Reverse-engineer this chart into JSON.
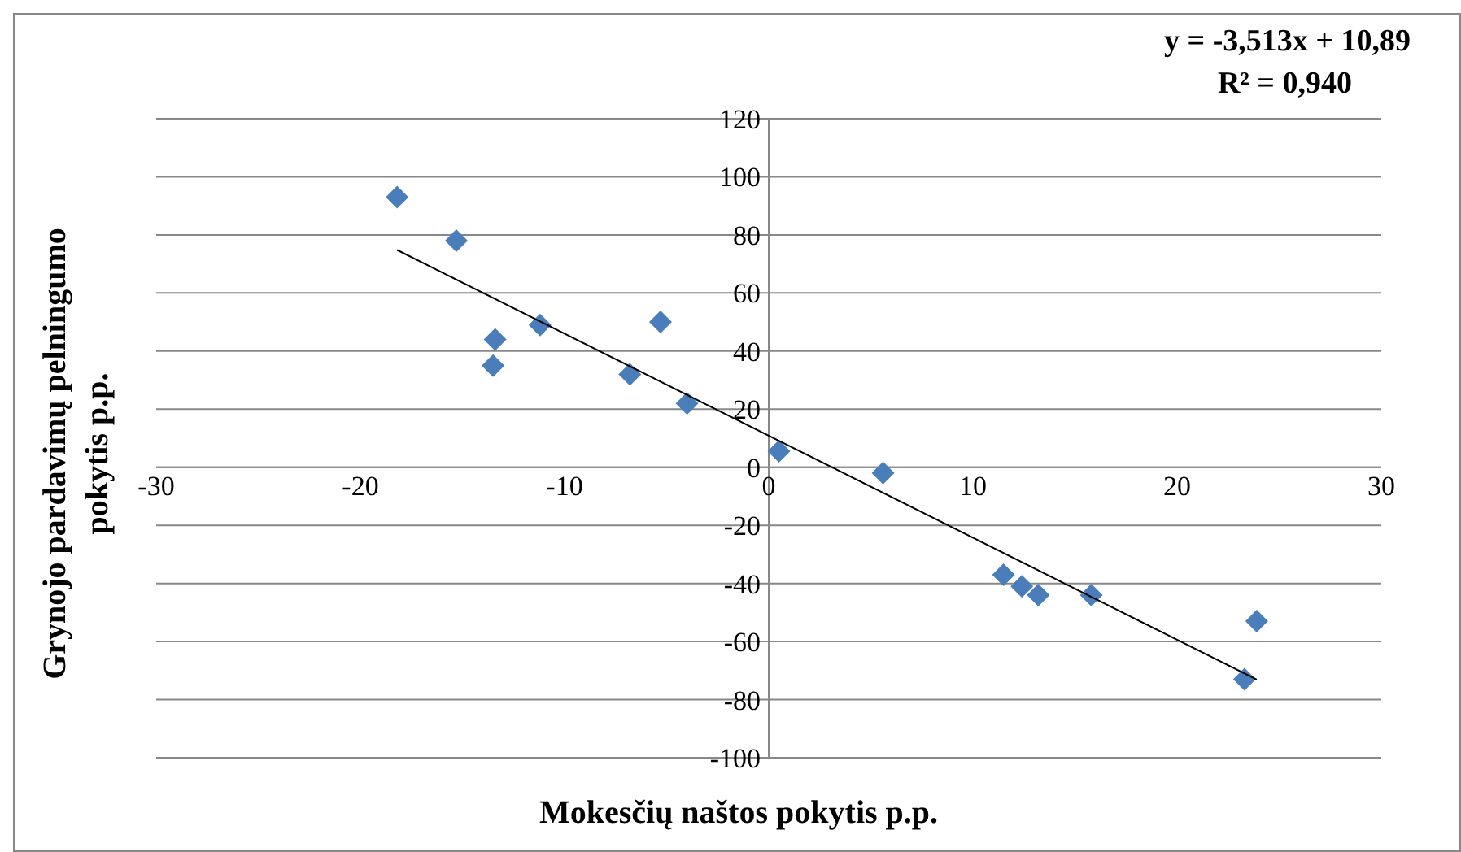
{
  "chart_data": {
    "type": "scatter",
    "xlabel": "Mokesčių naštos pokytis p.p.",
    "ylabel": "Grynojo pardavimų pelningumo pokytis p.p.",
    "annotations": [
      "y = -3,513x + 10,89",
      "R² = 0,940"
    ],
    "xlim": [
      -30,
      30
    ],
    "xticks": [
      -30,
      -20,
      -10,
      0,
      10,
      20,
      30
    ],
    "ylim": [
      -100,
      120
    ],
    "yticks": [
      -100,
      -80,
      -60,
      -40,
      -20,
      0,
      20,
      40,
      60,
      80,
      100,
      120
    ],
    "grid": "y",
    "legend": false,
    "series": [
      {
        "marker": "diamond",
        "color": "#4a7ebb",
        "x": [
          -18.2,
          -15.3,
          -13.4,
          -13.5,
          -11.2,
          -6.8,
          -5.3,
          -4.0,
          0.5,
          5.6,
          11.5,
          12.4,
          13.2,
          15.8,
          23.3,
          23.9
        ],
        "values": [
          93,
          78,
          44,
          35,
          49,
          32,
          50,
          22,
          5.5,
          -2,
          -37,
          -41,
          -44,
          -44,
          -73,
          -53
        ]
      },
      {
        "type": "line",
        "color": "#000000",
        "x": [
          -18.2,
          23.9
        ],
        "values": [
          74.8,
          -73.1
        ]
      }
    ]
  }
}
